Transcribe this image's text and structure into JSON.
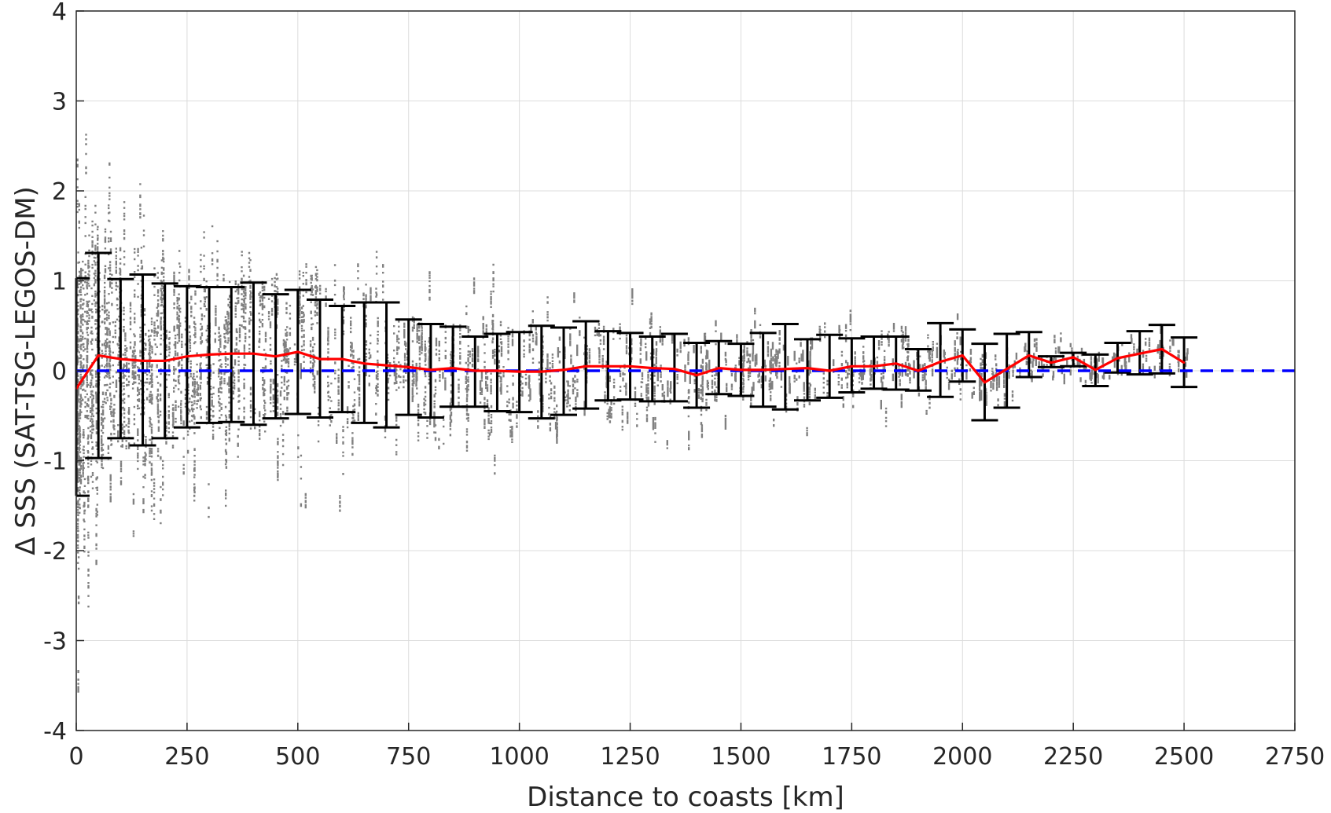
{
  "chart_data": {
    "type": "scatter",
    "title": "",
    "xlabel": "Distance to coasts [km]",
    "ylabel": "Δ SSS (SAT-TSG-LEGOS-DM)",
    "xlim": [
      0,
      2750
    ],
    "ylim": [
      -4,
      4
    ],
    "xticks": [
      0,
      250,
      500,
      750,
      1000,
      1250,
      1500,
      1750,
      2000,
      2250,
      2500,
      2750
    ],
    "yticks": [
      -4,
      -3,
      -2,
      -1,
      0,
      1,
      2,
      3,
      4
    ],
    "xtick_labels": [
      "0",
      "250",
      "500",
      "750",
      "1000",
      "1250",
      "1500",
      "1750",
      "2000",
      "2250",
      "2500",
      "2750"
    ],
    "ytick_labels": [
      "-4",
      "-3",
      "-2",
      "-1",
      "0",
      "1",
      "2",
      "3",
      "4"
    ],
    "grid": true,
    "colors": {
      "scatter": "#808080",
      "errorbar": "#000000",
      "mean_line": "#ff0000",
      "zero_line": "#0000ff"
    },
    "scatter_cloud": {
      "description_series": "individual collocations",
      "x_range": [
        0,
        2510
      ],
      "spread_sd": [
        [
          0,
          1.25
        ],
        [
          250,
          0.85
        ],
        [
          500,
          0.72
        ],
        [
          750,
          0.6
        ],
        [
          1000,
          0.47
        ],
        [
          1250,
          0.38
        ],
        [
          1500,
          0.35
        ],
        [
          1750,
          0.28
        ],
        [
          2000,
          0.25
        ],
        [
          2250,
          0.12
        ],
        [
          2500,
          0.2
        ]
      ]
    },
    "series": [
      {
        "type": "errorbar",
        "x": [
          0,
          50,
          100,
          150,
          200,
          250,
          300,
          350,
          400,
          450,
          500,
          550,
          600,
          650,
          700,
          750,
          800,
          850,
          900,
          950,
          1000,
          1050,
          1100,
          1150,
          1200,
          1250,
          1300,
          1350,
          1400,
          1450,
          1500,
          1550,
          1600,
          1650,
          1700,
          1750,
          1800,
          1850,
          1900,
          1950,
          2000,
          2050,
          2100,
          2150,
          2200,
          2250,
          2300,
          2350,
          2400,
          2450,
          2500
        ],
        "mean": [
          -0.2,
          0.17,
          0.13,
          0.11,
          0.11,
          0.16,
          0.18,
          0.19,
          0.19,
          0.16,
          0.21,
          0.13,
          0.13,
          0.08,
          0.06,
          0.04,
          0.01,
          0.03,
          0.0,
          0.0,
          -0.01,
          -0.01,
          0.01,
          0.05,
          0.05,
          0.05,
          0.03,
          0.02,
          -0.05,
          0.03,
          0.01,
          0.01,
          0.02,
          0.03,
          0.0,
          0.05,
          0.05,
          0.08,
          0.0,
          0.1,
          0.17,
          -0.13,
          0.02,
          0.17,
          0.09,
          0.15,
          0.01,
          0.14,
          0.19,
          0.24,
          0.09
        ],
        "upper": [
          1.03,
          1.31,
          1.02,
          1.07,
          0.97,
          0.94,
          0.93,
          0.93,
          0.98,
          0.85,
          0.9,
          0.79,
          0.72,
          0.76,
          0.76,
          0.57,
          0.52,
          0.49,
          0.38,
          0.41,
          0.43,
          0.5,
          0.48,
          0.55,
          0.44,
          0.42,
          0.38,
          0.41,
          0.31,
          0.33,
          0.3,
          0.42,
          0.52,
          0.35,
          0.4,
          0.36,
          0.38,
          0.38,
          0.24,
          0.53,
          0.46,
          0.3,
          0.41,
          0.43,
          0.16,
          0.2,
          0.18,
          0.31,
          0.44,
          0.51,
          0.37
        ],
        "lower": [
          -1.39,
          -0.97,
          -0.75,
          -0.83,
          -0.75,
          -0.63,
          -0.58,
          -0.57,
          -0.6,
          -0.53,
          -0.48,
          -0.52,
          -0.46,
          -0.58,
          -0.63,
          -0.49,
          -0.52,
          -0.4,
          -0.4,
          -0.45,
          -0.46,
          -0.53,
          -0.49,
          -0.42,
          -0.33,
          -0.32,
          -0.34,
          -0.34,
          -0.41,
          -0.26,
          -0.28,
          -0.4,
          -0.43,
          -0.33,
          -0.3,
          -0.24,
          -0.2,
          -0.21,
          -0.22,
          -0.29,
          -0.12,
          -0.55,
          -0.41,
          -0.07,
          0.04,
          0.05,
          -0.17,
          -0.02,
          -0.04,
          -0.03,
          -0.18
        ]
      }
    ],
    "reference_line": {
      "y": 0,
      "style": "dashed"
    }
  }
}
